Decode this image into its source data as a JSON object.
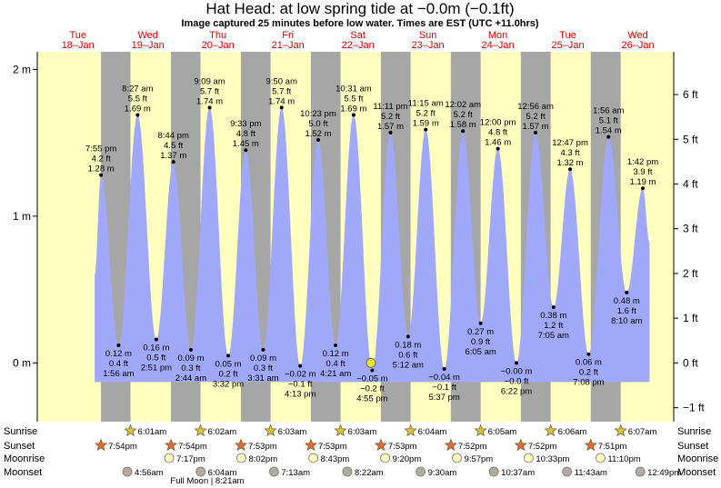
{
  "header": {
    "title": "Hat Head: at low  spring tide at −0.0m (−0.1ft)",
    "subtitle": "Image captured 25 minutes before low water. Times are EST (UTC +11.0hrs)"
  },
  "chart_data": {
    "type": "area",
    "title": "Hat Head: at low  spring tide at −0.0m (−0.1ft)",
    "subtitle": "Image captured 25 minutes before low water. Times are EST (UTC +11.0hrs)",
    "time_unit": "hours from Tue 18-Jan 00:00",
    "x_range_hours": [
      -1.95,
      216.3
    ],
    "ylim_m": [
      -0.4,
      2.12
    ],
    "left_axis": {
      "unit": "m",
      "ticks": [
        {
          "value": 0,
          "label": "0 m"
        },
        {
          "value": 1,
          "label": "1 m"
        },
        {
          "value": 2,
          "label": "2 m"
        }
      ]
    },
    "right_axis": {
      "unit": "ft",
      "ticks": [
        {
          "value": -1,
          "label": "−1 ft"
        },
        {
          "value": 0,
          "label": "0 ft"
        },
        {
          "value": 1,
          "label": "1 ft"
        },
        {
          "value": 2,
          "label": "2 ft"
        },
        {
          "value": 3,
          "label": "3 ft"
        },
        {
          "value": 4,
          "label": "4 ft"
        },
        {
          "value": 5,
          "label": "5 ft"
        },
        {
          "value": 6,
          "label": "6 ft"
        }
      ]
    },
    "days": [
      {
        "name": "Tue",
        "date": "18–Jan"
      },
      {
        "name": "Wed",
        "date": "19–Jan"
      },
      {
        "name": "Thu",
        "date": "20–Jan"
      },
      {
        "name": "Fri",
        "date": "21–Jan"
      },
      {
        "name": "Sat",
        "date": "22–Jan"
      },
      {
        "name": "Sun",
        "date": "23–Jan"
      },
      {
        "name": "Mon",
        "date": "24–Jan"
      },
      {
        "name": "Tue",
        "date": "25–Jan"
      },
      {
        "name": "Wed",
        "date": "26–Jan"
      }
    ],
    "night_bands": [
      {
        "from": 19.9,
        "to": 30.02
      },
      {
        "from": 43.9,
        "to": 54.03
      },
      {
        "from": 67.88,
        "to": 78.05
      },
      {
        "from": 91.88,
        "to": 102.05
      },
      {
        "from": 115.88,
        "to": 126.07
      },
      {
        "from": 139.87,
        "to": 150.08
      },
      {
        "from": 163.87,
        "to": 174.1
      },
      {
        "from": 187.85,
        "to": 198.12
      }
    ],
    "tides": [
      {
        "t": 19.92,
        "m": 1.28,
        "time": "7:55 pm",
        "ft": "4.2 ft",
        "m_label": "1.28 m",
        "type": "high"
      },
      {
        "t": 25.93,
        "m": 0.12,
        "time": "1:56 am",
        "ft": "0.4 ft",
        "m_label": "0.12 m",
        "type": "low"
      },
      {
        "t": 32.45,
        "m": 1.69,
        "time": "8:27 am",
        "ft": "5.5 ft",
        "m_label": "1.69 m",
        "type": "high"
      },
      {
        "t": 38.85,
        "m": 0.16,
        "time": "2:51 pm",
        "ft": "0.5 ft",
        "m_label": "0.16 m",
        "type": "low"
      },
      {
        "t": 44.73,
        "m": 1.37,
        "time": "8:44 pm",
        "ft": "4.5 ft",
        "m_label": "1.37 m",
        "type": "high"
      },
      {
        "t": 50.73,
        "m": 0.09,
        "time": "2:44 am",
        "ft": "0.3 ft",
        "m_label": "0.09 m",
        "type": "low"
      },
      {
        "t": 57.15,
        "m": 1.74,
        "time": "9:09 am",
        "ft": "5.7 ft",
        "m_label": "1.74 m",
        "type": "high"
      },
      {
        "t": 63.53,
        "m": 0.05,
        "time": "3:32 pm",
        "ft": "0.2 ft",
        "m_label": "0.05 m",
        "type": "low"
      },
      {
        "t": 69.55,
        "m": 1.45,
        "time": "9:33 pm",
        "ft": "4.8 ft",
        "m_label": "1.45 m",
        "type": "high"
      },
      {
        "t": 75.52,
        "m": 0.09,
        "time": "3:31 am",
        "ft": "0.3 ft",
        "m_label": "0.09 m",
        "type": "low"
      },
      {
        "t": 81.83,
        "m": 1.74,
        "time": "9:50 am",
        "ft": "5.7 ft",
        "m_label": "1.74 m",
        "type": "high"
      },
      {
        "t": 88.22,
        "m": -0.02,
        "time": "4:13 pm",
        "ft": "−0.1 ft",
        "m_label": "−0.02 m",
        "type": "low"
      },
      {
        "t": 94.38,
        "m": 1.52,
        "time": "10:23 pm",
        "ft": "5.0 ft",
        "m_label": "1.52 m",
        "type": "high"
      },
      {
        "t": 100.35,
        "m": 0.12,
        "time": "4:21 am",
        "ft": "0.4 ft",
        "m_label": "0.12 m",
        "type": "low"
      },
      {
        "t": 106.52,
        "m": 1.69,
        "time": "10:31 am",
        "ft": "5.5 ft",
        "m_label": "1.69 m",
        "type": "high"
      },
      {
        "t": 112.92,
        "m": -0.05,
        "time": "4:55 pm",
        "ft": "−0.2 ft",
        "m_label": "−0.05 m",
        "type": "low"
      },
      {
        "t": 119.18,
        "m": 1.57,
        "time": "11:11 pm",
        "ft": "5.2 ft",
        "m_label": "1.57 m",
        "type": "high"
      },
      {
        "t": 125.2,
        "m": 0.18,
        "time": "5:12 am",
        "ft": "0.6 ft",
        "m_label": "0.18 m",
        "type": "low"
      },
      {
        "t": 131.25,
        "m": 1.59,
        "time": "11:15 am",
        "ft": "5.2 ft",
        "m_label": "1.59 m",
        "type": "high"
      },
      {
        "t": 137.62,
        "m": -0.04,
        "time": "5:37 pm",
        "ft": "−0.1 ft",
        "m_label": "−0.04 m",
        "type": "low"
      },
      {
        "t": 144.03,
        "m": 1.58,
        "time": "12:02 am",
        "ft": "5.2 ft",
        "m_label": "1.58 m",
        "type": "high"
      },
      {
        "t": 150.08,
        "m": 0.27,
        "time": "6:05 am",
        "ft": "0.9 ft",
        "m_label": "0.27 m",
        "type": "low"
      },
      {
        "t": 156.0,
        "m": 1.46,
        "time": "12:00 pm",
        "ft": "4.8 ft",
        "m_label": "1.46 m",
        "type": "high"
      },
      {
        "t": 162.37,
        "m": -0.0,
        "time": "6:22 pm",
        "ft": "−0.0 ft",
        "m_label": "−0.00 m",
        "type": "low"
      },
      {
        "t": 168.93,
        "m": 1.57,
        "time": "12:56 am",
        "ft": "5.2 ft",
        "m_label": "1.57 m",
        "type": "high"
      },
      {
        "t": 175.08,
        "m": 0.38,
        "time": "7:05 am",
        "ft": "1.2 ft",
        "m_label": "0.38 m",
        "type": "low"
      },
      {
        "t": 180.78,
        "m": 1.32,
        "time": "12:47 pm",
        "ft": "4.3 ft",
        "m_label": "1.32 m",
        "type": "high"
      },
      {
        "t": 187.13,
        "m": 0.06,
        "time": "7:08 pm",
        "ft": "0.2 ft",
        "m_label": "0.06 m",
        "type": "low"
      },
      {
        "t": 193.93,
        "m": 1.54,
        "time": "1:56 am",
        "ft": "5.1 ft",
        "m_label": "1.54 m",
        "type": "high"
      },
      {
        "t": 200.17,
        "m": 0.48,
        "time": "8:10 am",
        "ft": "1.6 ft",
        "m_label": "0.48 m",
        "type": "low"
      },
      {
        "t": 205.7,
        "m": 1.19,
        "time": "1:42 pm",
        "ft": "3.9 ft",
        "m_label": "1.19 m",
        "type": "high"
      }
    ],
    "current": {
      "t": 112.5,
      "m": 0.0
    },
    "rows": {
      "sunrise": {
        "label": "Sunrise",
        "events": [
          {
            "t": 30.02,
            "time": "6:01am"
          },
          {
            "t": 54.03,
            "time": "6:02am"
          },
          {
            "t": 78.05,
            "time": "6:03am"
          },
          {
            "t": 102.05,
            "time": "6:03am"
          },
          {
            "t": 126.07,
            "time": "6:04am"
          },
          {
            "t": 150.08,
            "time": "6:05am"
          },
          {
            "t": 174.1,
            "time": "6:06am"
          },
          {
            "t": 198.12,
            "time": "6:07am"
          }
        ]
      },
      "sunset": {
        "label": "Sunset",
        "events": [
          {
            "t": 19.9,
            "time": "7:54pm"
          },
          {
            "t": 43.9,
            "time": "7:54pm"
          },
          {
            "t": 67.88,
            "time": "7:53pm"
          },
          {
            "t": 91.88,
            "time": "7:53pm"
          },
          {
            "t": 115.88,
            "time": "7:53pm"
          },
          {
            "t": 139.87,
            "time": "7:52pm"
          },
          {
            "t": 163.87,
            "time": "7:52pm"
          },
          {
            "t": 187.85,
            "time": "7:51pm"
          }
        ]
      },
      "moonrise": {
        "label": "Moonrise",
        "events": [
          {
            "t": 43.28,
            "time": "7:17pm"
          },
          {
            "t": 68.03,
            "time": "8:02pm"
          },
          {
            "t": 92.72,
            "time": "8:43pm"
          },
          {
            "t": 117.33,
            "time": "9:20pm"
          },
          {
            "t": 141.95,
            "time": "9:57pm"
          },
          {
            "t": 166.55,
            "time": "10:33pm"
          },
          {
            "t": 191.17,
            "time": "11:10pm"
          }
        ]
      },
      "moonset": {
        "label": "Moonset",
        "events": [
          {
            "t": 28.93,
            "time": "4:56am"
          },
          {
            "t": 54.07,
            "time": "6:04am"
          },
          {
            "t": 79.22,
            "time": "7:13am"
          },
          {
            "t": 104.37,
            "time": "8:22am"
          },
          {
            "t": 129.5,
            "time": "9:30am"
          },
          {
            "t": 154.62,
            "time": "10:37am"
          },
          {
            "t": 179.72,
            "time": "11:43am"
          },
          {
            "t": 204.82,
            "time": "12:49pm"
          }
        ]
      }
    },
    "full_moon": {
      "t": 56.35,
      "text": "Full Moon | 8:21am"
    }
  },
  "colors": {
    "day_band": "#ffffc0",
    "night_band": "#a6a6a6",
    "water_fill": "#a0a8fa",
    "day_label": "#d40000",
    "sun_star": "#d8c040",
    "sunset_star": "#e06a3a",
    "moonrise_disc": "#ffffc0",
    "moonset_disc": "#b0aaa0",
    "current_marker": "#f0e030"
  }
}
